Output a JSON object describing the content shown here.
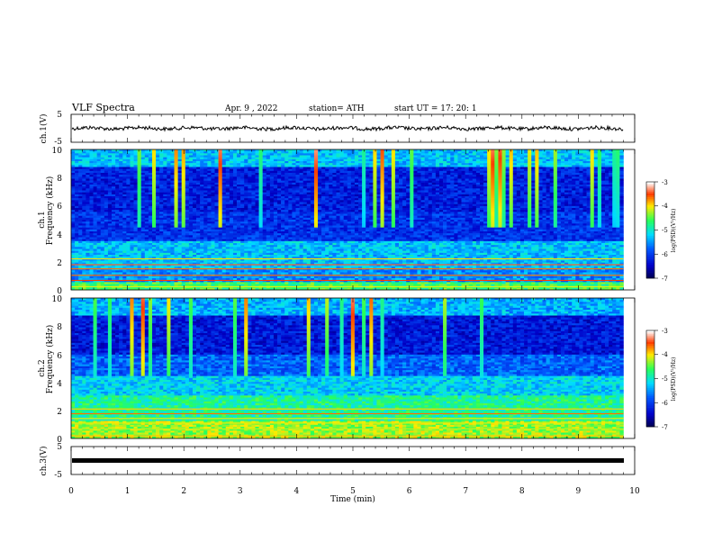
{
  "header": {
    "title": "VLF  Spectra",
    "date": "Apr. 9  , 2022",
    "station": "station= ATH",
    "start": "start  UT  =   17: 20: 1"
  },
  "chart_data": [
    {
      "type": "line",
      "ylabel": "ch.1(V)",
      "ylim": [
        -5,
        5
      ],
      "yticks": [
        "5",
        "-5"
      ],
      "approx_level": 0,
      "color": "#000000"
    },
    {
      "type": "heatmap",
      "ylabel_channel": "ch.1",
      "ylabel": "Frequency  (kHz)",
      "ylim": [
        0,
        10
      ],
      "yticks": [
        "0",
        "2",
        "4",
        "6",
        "8",
        "10"
      ],
      "colorbar": {
        "label": "log(PSD)(V²/Hz)",
        "range": [
          -7,
          -3
        ],
        "ticks": [
          "-3",
          "-4",
          "-5",
          "-6",
          "-7"
        ]
      }
    },
    {
      "type": "heatmap",
      "ylabel_channel": "ch.2",
      "ylabel": "Frequency  (kHz)",
      "ylim": [
        0,
        10
      ],
      "yticks": [
        "0",
        "2",
        "4",
        "6",
        "8",
        "10"
      ],
      "colorbar": {
        "label": "log(PSD)(V²/Hz)",
        "range": [
          -7,
          -3
        ],
        "ticks": [
          "-3",
          "-4",
          "-5",
          "-6",
          "-7"
        ]
      }
    },
    {
      "type": "line",
      "ylabel": "ch.3(V)",
      "ylim": [
        -5,
        5
      ],
      "yticks": [
        "5",
        "-5"
      ],
      "approx_level": 0,
      "color": "#000000"
    }
  ],
  "x_axis": {
    "label": "Time  (min)",
    "range": [
      0,
      10
    ],
    "ticks": [
      "0",
      "1",
      "2",
      "3",
      "4",
      "5",
      "6",
      "7",
      "8",
      "9",
      "10"
    ],
    "data_end": 9.8
  }
}
